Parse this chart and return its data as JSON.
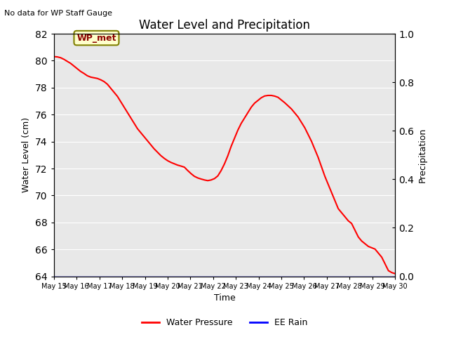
{
  "title": "Water Level and Precipitation",
  "title_top_left": "No data for WP Staff Gauge",
  "ylabel_left": "Water Level (cm)",
  "ylabel_right": "Precipitation",
  "xlabel": "Time",
  "ylim_left": [
    64,
    82
  ],
  "ylim_right": [
    0.0,
    1.0
  ],
  "yticks_left": [
    64,
    66,
    68,
    70,
    72,
    74,
    76,
    78,
    80,
    82
  ],
  "yticks_right": [
    0.0,
    0.2,
    0.4,
    0.6,
    0.8,
    1.0
  ],
  "legend_labels": [
    "Water Pressure",
    "EE Rain"
  ],
  "legend_colors": [
    "red",
    "blue"
  ],
  "wp_met_label": "WP_met",
  "wp_met_color": "#8b0000",
  "wp_met_bg": "#ffffcc",
  "wp_met_edge": "#808000",
  "bg_color": "#e8e8e8",
  "line_color_water": "red",
  "line_color_rain": "blue",
  "water_level_data": [
    80.3,
    80.28,
    80.22,
    80.1,
    79.95,
    79.8,
    79.6,
    79.4,
    79.2,
    79.05,
    78.88,
    78.78,
    78.73,
    78.68,
    78.58,
    78.45,
    78.25,
    77.95,
    77.65,
    77.35,
    76.95,
    76.55,
    76.15,
    75.75,
    75.35,
    74.95,
    74.65,
    74.35,
    74.05,
    73.75,
    73.45,
    73.2,
    72.95,
    72.75,
    72.58,
    72.45,
    72.35,
    72.25,
    72.18,
    72.1,
    71.85,
    71.62,
    71.42,
    71.3,
    71.22,
    71.15,
    71.1,
    71.15,
    71.25,
    71.45,
    71.85,
    72.35,
    72.95,
    73.65,
    74.25,
    74.85,
    75.35,
    75.75,
    76.15,
    76.55,
    76.85,
    77.05,
    77.25,
    77.38,
    77.42,
    77.42,
    77.37,
    77.28,
    77.08,
    76.88,
    76.65,
    76.42,
    76.12,
    75.82,
    75.42,
    75.02,
    74.52,
    74.02,
    73.42,
    72.82,
    72.12,
    71.42,
    70.82,
    70.22,
    69.62,
    69.02,
    68.72,
    68.42,
    68.12,
    67.92,
    67.42,
    66.92,
    66.62,
    66.42,
    66.22,
    66.12,
    66.02,
    65.72,
    65.42,
    64.92,
    64.42,
    64.28,
    64.2
  ]
}
